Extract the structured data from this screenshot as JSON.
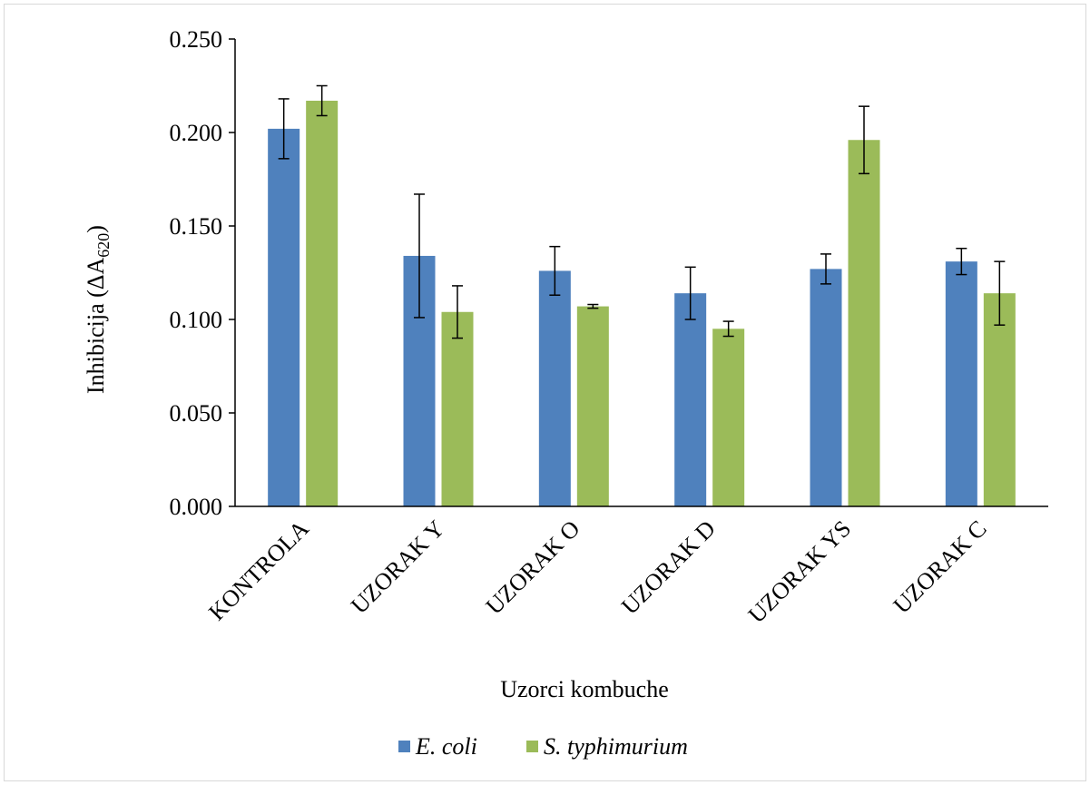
{
  "chart_data": {
    "type": "bar",
    "categories": [
      "KONTROLA",
      "UZORAK Y",
      "UZORAK O",
      "UZORAK D",
      "UZORAK YS",
      "UZORAK C"
    ],
    "series": [
      {
        "name": "E. coli",
        "color": "#4f81bd",
        "values": [
          0.202,
          0.134,
          0.126,
          0.114,
          0.127,
          0.131
        ],
        "errors": [
          0.016,
          0.033,
          0.013,
          0.014,
          0.008,
          0.007
        ]
      },
      {
        "name": "S. typhimurium",
        "color": "#9bbb59",
        "values": [
          0.217,
          0.104,
          0.107,
          0.095,
          0.196,
          0.114
        ],
        "errors": [
          0.008,
          0.014,
          0.001,
          0.004,
          0.018,
          0.017
        ]
      }
    ],
    "ylim": [
      0,
      0.25
    ],
    "yticks": [
      "0.000",
      "0.050",
      "0.100",
      "0.150",
      "0.200",
      "0.250"
    ],
    "ylabel_main": "Inhibicija  (ΔA",
    "ylabel_sub": "620",
    "ylabel_close": ")",
    "xlabel": "Uzorci kombuche",
    "grid": false,
    "legend_position": "bottom"
  }
}
